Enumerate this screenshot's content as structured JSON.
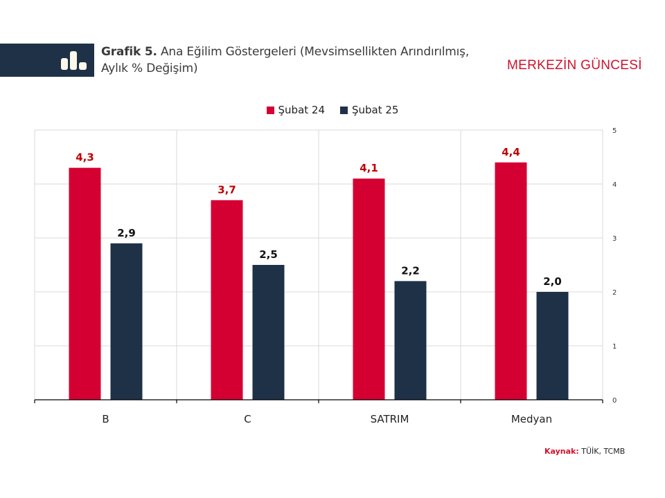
{
  "header": {
    "title_bold": "Grafik 5.",
    "title_line1": " Ana Eğilim Göstergeleri (Mevsimsellikten Arındırılmış,",
    "title_line2": "Aylık % Değişim)",
    "brand": "MERKEZİN GÜNCESİ",
    "icon": "bar-chart-icon"
  },
  "source": {
    "label": "Kaynak:",
    "text": " TÜİK, TCMB"
  },
  "colors": {
    "series1": "#d50032",
    "series2": "#1e3147",
    "label1": "#c00000",
    "label2": "#111111",
    "grid": "#d9d9d9",
    "band": "#1e3147"
  },
  "chart_data": {
    "type": "bar",
    "title": "Ana Eğilim Göstergeleri (Mevsimsellikten Arındırılmış, Aylık % Değişim)",
    "categories": [
      "B",
      "C",
      "SATRIM",
      "Medyan"
    ],
    "series": [
      {
        "name": "Şubat 24",
        "values": [
          4.3,
          3.7,
          4.1,
          4.4
        ],
        "labels": [
          "4,3",
          "3,7",
          "4,1",
          "4,4"
        ]
      },
      {
        "name": "Şubat 25",
        "values": [
          2.9,
          2.5,
          2.2,
          2.0
        ],
        "labels": [
          "2,9",
          "2,5",
          "2,2",
          "2,0"
        ]
      }
    ],
    "xlabel": "",
    "ylabel": "",
    "ylim": [
      0,
      5
    ],
    "yticks": [
      "0",
      "1",
      "2",
      "3",
      "4",
      "5"
    ],
    "y_axis_side": "right",
    "grid": true,
    "legend_position": "top-center"
  }
}
